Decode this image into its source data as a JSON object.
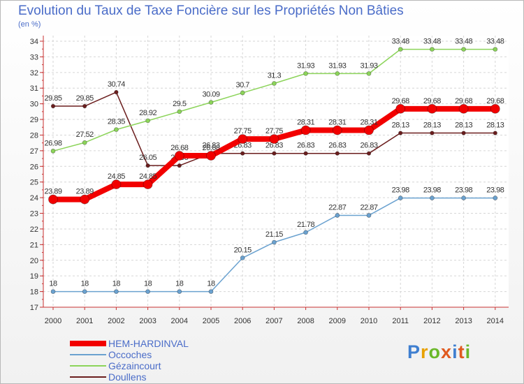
{
  "title": "Evolution du Taux de Taxe Foncière sur les Propriétés Non Bâties",
  "subtitle": "(en %)",
  "logo": {
    "text": "Proxiti",
    "colors": [
      "#3f7fd0",
      "#e8a100",
      "#6bb82a",
      "#e05a20",
      "#3f7fd0",
      "#e05a20",
      "#6bb82a"
    ]
  },
  "chart_data": {
    "type": "line",
    "x": [
      "2000",
      "2001",
      "2002",
      "2003",
      "2004",
      "2005",
      "2006",
      "2007",
      "2008",
      "2009",
      "2010",
      "2011",
      "2012",
      "2013",
      "2014"
    ],
    "ylim": [
      17,
      34
    ],
    "yticks": [
      "17",
      "18",
      "19",
      "20",
      "21",
      "22",
      "23",
      "24",
      "25",
      "26",
      "27",
      "28",
      "29",
      "30",
      "31",
      "32",
      "33",
      "34"
    ],
    "grid": true,
    "legend_position": "bottom-left",
    "series": [
      {
        "name": "Doullens",
        "color": "#6b1e1e",
        "width": 1.5,
        "marker": 5.5,
        "values": [
          29.85,
          29.85,
          30.74,
          26.05,
          26.05,
          26.83,
          26.83,
          26.83,
          26.83,
          26.83,
          26.83,
          28.13,
          28.13,
          28.13,
          28.13
        ],
        "labels": [
          "29.85",
          "29.85",
          "30.74",
          "26.05",
          "26.05",
          "26.83",
          "26.83",
          "26.83",
          "26.83",
          "26.83",
          "26.83",
          "28.13",
          "28.13",
          "28.13",
          "28.13"
        ]
      },
      {
        "name": "Gézaincourt",
        "color": "#8cd45a",
        "width": 1.5,
        "marker": 6,
        "values": [
          26.98,
          27.52,
          28.35,
          28.92,
          29.5,
          30.09,
          30.7,
          31.3,
          31.93,
          31.93,
          31.93,
          33.48,
          33.48,
          33.48,
          33.48
        ],
        "labels": [
          "26.98",
          "27.52",
          "28.35",
          "28.92",
          "29.5",
          "30.09",
          "30.7",
          "31.3",
          "31.93",
          "31.93",
          "31.93",
          "33.48",
          "33.48",
          "33.48",
          "33.48"
        ]
      },
      {
        "name": "Occoches",
        "color": "#6ba2d0",
        "width": 1.5,
        "marker": 6,
        "values": [
          18,
          18,
          18,
          18,
          18,
          18,
          20.15,
          21.15,
          21.78,
          22.87,
          22.87,
          23.98,
          23.98,
          23.98,
          23.98
        ],
        "labels": [
          "18",
          "18",
          "18",
          "18",
          "18",
          "18",
          "20.15",
          "21.15",
          "21.78",
          "22.87",
          "22.87",
          "23.98",
          "23.98",
          "23.98",
          "23.98"
        ]
      },
      {
        "name": "HEM-HARDINVAL",
        "color": "#f20000",
        "width": 8,
        "marker": 13,
        "values": [
          23.89,
          23.89,
          24.85,
          24.85,
          26.68,
          26.68,
          27.75,
          27.75,
          28.31,
          28.31,
          28.31,
          29.68,
          29.68,
          29.68,
          29.68
        ],
        "labels": [
          "23.89",
          "23.89",
          "24.85",
          "24.85",
          "26.68",
          "26.68",
          "27.75",
          "27.75",
          "28.31",
          "28.31",
          "28.31",
          "29.68",
          "29.68",
          "29.68",
          "29.68"
        ]
      }
    ],
    "legend_order": [
      "HEM-HARDINVAL",
      "Occoches",
      "Gézaincourt",
      "Doullens"
    ]
  }
}
